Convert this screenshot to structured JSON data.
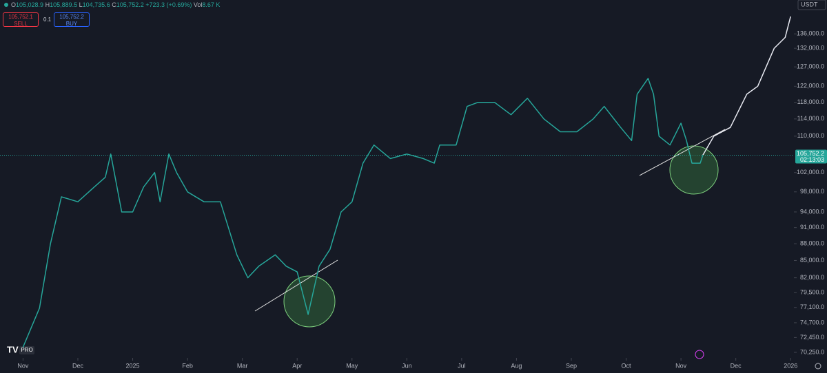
{
  "header": {
    "open_label": "O",
    "open": "105,028.9",
    "high_label": "H",
    "high": "105,889.5",
    "low_label": "L",
    "low": "104,735.6",
    "close_label": "C",
    "close": "105,752.2",
    "change": "+723.3 (+0.69%)",
    "volume_label": "Vol",
    "volume": "8.67 K"
  },
  "trade": {
    "sell_price": "105,752.1",
    "sell": "SELL",
    "quantity": "0.1",
    "buy_price": "105,752.2",
    "buy": "BUY"
  },
  "currency": "USDT",
  "logo": "PRO",
  "chart_data": {
    "type": "line",
    "log_scale": true,
    "xlim": [
      -0.42,
      14.06
    ],
    "xticks": [
      {
        "value": 0,
        "label": "Nov"
      },
      {
        "value": 1,
        "label": "Dec"
      },
      {
        "value": 2,
        "label": "2025"
      },
      {
        "value": 3,
        "label": "Feb"
      },
      {
        "value": 4,
        "label": "Mar"
      },
      {
        "value": 5,
        "label": "Apr"
      },
      {
        "value": 6,
        "label": "May"
      },
      {
        "value": 7,
        "label": "Jun"
      },
      {
        "value": 8,
        "label": "Jul"
      },
      {
        "value": 9,
        "label": "Aug"
      },
      {
        "value": 10,
        "label": "Sep"
      },
      {
        "value": 11,
        "label": "Oct"
      },
      {
        "value": 12,
        "label": "Nov"
      },
      {
        "value": 13,
        "label": "Dec"
      },
      {
        "value": 14,
        "label": "2026"
      }
    ],
    "ylim": [
      69450,
      145900
    ],
    "yticks": [
      {
        "value": 136000,
        "label": "136,000.0"
      },
      {
        "value": 132000,
        "label": "132,000.0"
      },
      {
        "value": 127000,
        "label": "127,000.0"
      },
      {
        "value": 122000,
        "label": "122,000.0"
      },
      {
        "value": 118000,
        "label": "118,000.0"
      },
      {
        "value": 114000,
        "label": "114,000.0"
      },
      {
        "value": 110000,
        "label": "110,000.0"
      },
      {
        "value": 102000,
        "label": "102,000.0"
      },
      {
        "value": 98000,
        "label": "98,000.0"
      },
      {
        "value": 94000,
        "label": "94,000.0"
      },
      {
        "value": 91000,
        "label": "91,000.0"
      },
      {
        "value": 88000,
        "label": "88,000.0"
      },
      {
        "value": 85000,
        "label": "85,000.0"
      },
      {
        "value": 82000,
        "label": "82,000.0"
      },
      {
        "value": 79500,
        "label": "79,500.0"
      },
      {
        "value": 77100,
        "label": "77,100.0"
      },
      {
        "value": 74700,
        "label": "74,700.0"
      },
      {
        "value": 72450,
        "label": "72,450.0"
      },
      {
        "value": 70250,
        "label": "70,250.0"
      }
    ],
    "current_price": {
      "value": 105752.2,
      "label": "105,752.2"
    },
    "countdown": "02:13:03",
    "series": [
      {
        "color": "#26a69a",
        "x": [
          0,
          0.3,
          0.5,
          0.7,
          1.0,
          1.3,
          1.5,
          1.6,
          1.8,
          2.0,
          2.2,
          2.4,
          2.5,
          2.66,
          2.8,
          3.0,
          3.3,
          3.6,
          3.9,
          4.1,
          4.3,
          4.6,
          4.8,
          5.0,
          5.2,
          5.4,
          5.6,
          5.8,
          6.0,
          6.2,
          6.4,
          6.7,
          7.0,
          7.3,
          7.5,
          7.6,
          7.9,
          8.1,
          8.3,
          8.6,
          8.9,
          9.2,
          9.5,
          9.8,
          10.1,
          10.4,
          10.6,
          10.9,
          11.1,
          11.2,
          11.4,
          11.5,
          11.6,
          11.8,
          12.0,
          12.1,
          12.2,
          12.35,
          12.4
        ],
        "values": [
          71000,
          77000,
          88000,
          97000,
          96000,
          99000,
          101000,
          106000,
          94000,
          94000,
          99000,
          102000,
          96000,
          106000,
          102000,
          98000,
          96000,
          96000,
          86000,
          82000,
          84000,
          86000,
          84000,
          83000,
          76000,
          84000,
          87000,
          94000,
          96000,
          104000,
          108000,
          105000,
          106000,
          105000,
          104000,
          108000,
          108000,
          117000,
          118000,
          118000,
          115000,
          119000,
          114000,
          111000,
          111000,
          114000,
          117000,
          112000,
          109000,
          120000,
          124000,
          120000,
          110000,
          108000,
          113000,
          109000,
          104000,
          104000,
          105752.2
        ]
      },
      {
        "color": "#e8eaf2",
        "x": [
          12.4,
          12.6,
          12.9,
          13.2,
          13.4,
          13.7,
          13.9,
          14.0
        ],
        "values": [
          105752.2,
          110000,
          112000,
          120000,
          122000,
          132000,
          135000,
          141000
        ]
      }
    ]
  }
}
